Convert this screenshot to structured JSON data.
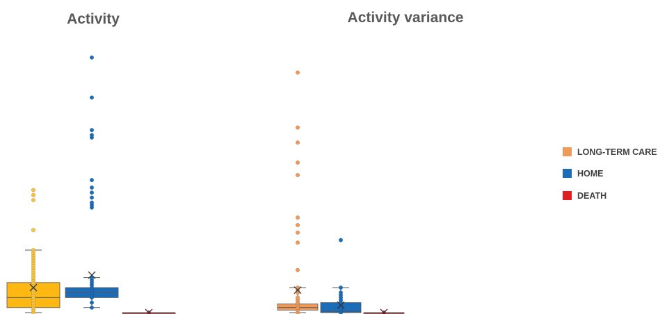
{
  "colors": {
    "long_term_care": "#ED9A5A",
    "home": "#1C6CB8",
    "death": "#E02020",
    "activity_box": "#FDB813",
    "activity_point": "#F5C242",
    "whisker": "#595959"
  },
  "legend": {
    "items": [
      {
        "label": "LONG-TERM CARE",
        "color": "#ED9A5A"
      },
      {
        "label": "HOME",
        "color": "#1C6CB8"
      },
      {
        "label": "DEATH",
        "color": "#E02020"
      }
    ]
  },
  "chart_data": [
    {
      "type": "box",
      "title": "Activity",
      "xlabel": "",
      "ylabel": "",
      "ylim": [
        0,
        100
      ],
      "grid": false,
      "series": [
        {
          "group": "long_term_care",
          "box_color": "#FDB813",
          "point_color": "#F5C242",
          "min": 0,
          "q1": 2,
          "median": 6,
          "q3": 12,
          "max": 25,
          "mean": 10,
          "points": [
            0,
            1,
            2,
            3,
            4,
            5,
            6,
            7,
            8,
            9,
            10,
            11,
            12,
            13,
            14,
            15,
            16,
            17,
            18,
            19,
            20,
            21,
            22,
            23,
            24,
            25,
            33,
            45,
            47,
            49
          ]
        },
        {
          "group": "home",
          "box_color": "#1C6CB8",
          "point_color": "#1C6CB8",
          "min": 2,
          "q1": 6,
          "median": 8,
          "q3": 10,
          "max": 14,
          "mean": 15,
          "points": [
            2,
            4,
            6,
            7,
            8,
            9,
            10,
            11,
            12,
            13,
            14,
            42,
            43,
            44,
            46,
            48,
            50,
            53,
            70,
            71,
            73,
            86,
            102
          ]
        },
        {
          "group": "death",
          "box_color": "#E02020",
          "point_color": "#E02020",
          "min": 0,
          "q1": 0,
          "median": 0,
          "q3": 0,
          "max": 0,
          "mean": 0,
          "points": [
            0
          ]
        }
      ]
    },
    {
      "type": "box",
      "title": "Activity variance",
      "xlabel": "",
      "ylabel": "",
      "ylim": [
        0,
        100
      ],
      "grid": false,
      "series": [
        {
          "group": "long_term_care",
          "box_color": "#ED9A5A",
          "point_color": "#ED9A5A",
          "min": 0,
          "q1": 1,
          "median": 2,
          "q3": 3.5,
          "max": 10,
          "mean": 9,
          "points": [
            0,
            1,
            2,
            3,
            4,
            5,
            6,
            8,
            9,
            10,
            17,
            28,
            32,
            35,
            38,
            55,
            60,
            68,
            74,
            96
          ]
        },
        {
          "group": "home",
          "box_color": "#1C6CB8",
          "point_color": "#1C6CB8",
          "min": 0,
          "q1": 0,
          "median": 0.5,
          "q3": 4,
          "max": 10,
          "mean": 3,
          "points": [
            0,
            1,
            2,
            3,
            4,
            5,
            6,
            7,
            8,
            10,
            29
          ]
        },
        {
          "group": "death",
          "box_color": "#E02020",
          "point_color": "#E02020",
          "min": 0,
          "q1": 0,
          "median": 0,
          "q3": 0,
          "max": 0,
          "mean": 0,
          "points": [
            0
          ]
        }
      ]
    }
  ]
}
